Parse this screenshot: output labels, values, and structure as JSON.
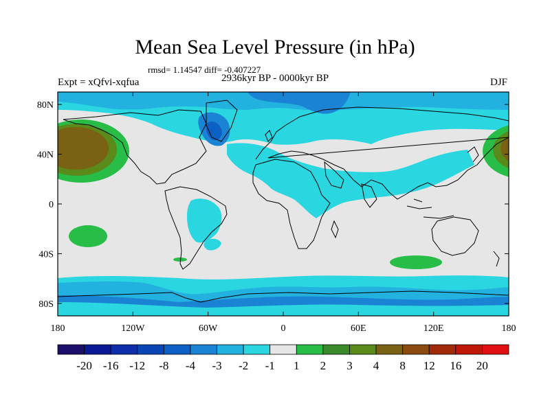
{
  "title": "Mean Sea Level Pressure (in hPa)",
  "stats": "rmsd= 1.14547 diff= -0.407227",
  "expt": "Expt = xQfvi-xqfua",
  "period": "2936kyr BP - 0000kyr BP",
  "season": "DJF",
  "lat_ticks": [
    {
      "label": "80N",
      "lat": 80
    },
    {
      "label": "40N",
      "lat": 40
    },
    {
      "label": "0",
      "lat": 0
    },
    {
      "label": "40S",
      "lat": -40
    },
    {
      "label": "80S",
      "lat": -80
    }
  ],
  "lon_ticks": [
    {
      "label": "180",
      "lon": -180
    },
    {
      "label": "120W",
      "lon": -120
    },
    {
      "label": "60W",
      "lon": -60
    },
    {
      "label": "0",
      "lon": 0
    },
    {
      "label": "60E",
      "lon": 60
    },
    {
      "label": "120E",
      "lon": 120
    },
    {
      "label": "180",
      "lon": 180
    }
  ],
  "colorbar": {
    "colors": [
      "#1b0f6b",
      "#0a1a96",
      "#0d2ea8",
      "#0a45b5",
      "#0c5fc3",
      "#1b83d3",
      "#23b1e0",
      "#2ad6e0",
      "#e6e6e6",
      "#27bd47",
      "#3a8a2c",
      "#5a8a1a",
      "#7a6214",
      "#8a4a10",
      "#a02a0a",
      "#c01808",
      "#e01010"
    ],
    "labels": [
      "-20",
      "-16",
      "-12",
      "-8",
      "-4",
      "-3",
      "-2",
      "-1",
      "1",
      "2",
      "3",
      "4",
      "8",
      "12",
      "16",
      "20"
    ]
  },
  "palette": {
    "neutral": "#e6e6e6",
    "light_cyan": "#2ad6e0",
    "cyan": "#23b1e0",
    "blue": "#1b83d3",
    "dark_blue": "#0c5fc3",
    "green": "#27bd47",
    "dark_green": "#3a8a2c",
    "olive": "#5a8a1a",
    "brown": "#7a6214",
    "dark_brown": "#8a4a10"
  }
}
